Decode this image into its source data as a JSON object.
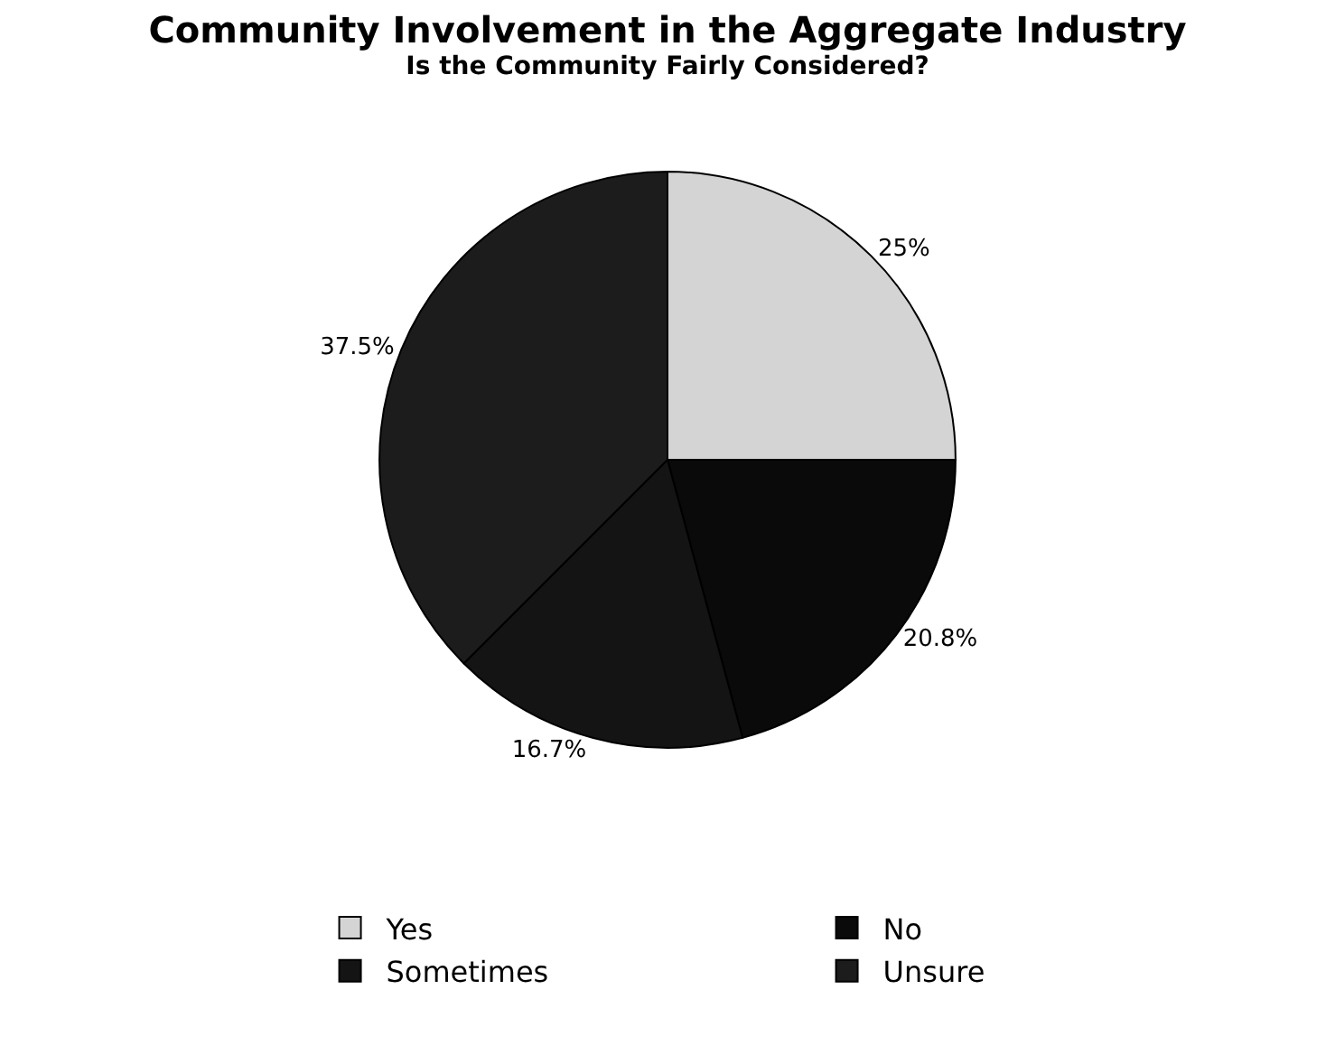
{
  "chart_data": {
    "type": "pie",
    "title": "Community Involvement in the Aggregate Industry",
    "subtitle": "Is the Community Fairly Considered?",
    "categories": [
      "Yes",
      "No",
      "Sometimes",
      "Unsure"
    ],
    "values": [
      25,
      20.8,
      16.7,
      37.5
    ],
    "value_labels": [
      "25%",
      "20.8%",
      "16.7%",
      "37.5%"
    ],
    "colors": [
      "#d4d4d4",
      "#0a0a0a",
      "#141414",
      "#1c1c1c"
    ],
    "legend": "bottom"
  }
}
